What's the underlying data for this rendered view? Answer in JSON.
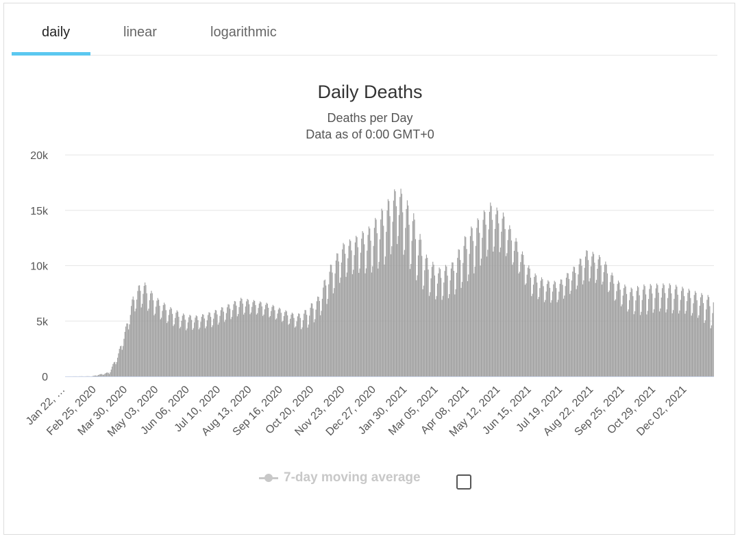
{
  "tabs": [
    {
      "label": "daily"
    },
    {
      "label": "linear"
    },
    {
      "label": "logarithmic"
    }
  ],
  "active_tab": 0,
  "legend": {
    "label": "7-day moving average",
    "enabled": false
  },
  "colors": {
    "bar": "#9e9e9e",
    "accent": "#5bc8f0",
    "grid": "#e6e6e6",
    "axis": "#ccd6eb"
  },
  "chart_data": {
    "type": "bar",
    "title": "Daily Deaths",
    "subtitle": [
      "Deaths per Day",
      "Data as of 0:00 GMT+0"
    ],
    "xlabel": "",
    "ylabel": "",
    "ylim": [
      0,
      20000
    ],
    "y_ticks": [
      "0",
      "5k",
      "10k",
      "15k",
      "20k"
    ],
    "y_tick_values": [
      0,
      5000,
      10000,
      15000,
      20000
    ],
    "x_start": "2020-01-22",
    "x_end": "2021-12-31",
    "x_tick_labels": [
      "Jan 22, …",
      "Feb 25, 2020",
      "Mar 30, 2020",
      "May 03, 2020",
      "Jun 06, 2020",
      "Jul 10, 2020",
      "Aug 13, 2020",
      "Sep 16, 2020",
      "Oct 20, 2020",
      "Nov 23, 2020",
      "Dec 27, 2020",
      "Jan 30, 2021",
      "Mar 05, 2021",
      "Apr 08, 2021",
      "May 12, 2021",
      "Jun 15, 2021",
      "Jul 19, 2021",
      "Aug 22, 2021",
      "Sep 25, 2021",
      "Oct 29, 2021",
      "Dec 02, 2021"
    ],
    "series": [
      {
        "name": "Daily Deaths",
        "weekly_low_points": [
          [
            "2020-01-22",
            0
          ],
          [
            "2020-02-20",
            0
          ],
          [
            "2020-03-10",
            200
          ],
          [
            "2020-03-20",
            1400
          ],
          [
            "2020-03-28",
            3200
          ],
          [
            "2020-04-05",
            5600
          ],
          [
            "2020-04-15",
            6000
          ],
          [
            "2020-04-30",
            5200
          ],
          [
            "2020-05-15",
            4500
          ],
          [
            "2020-06-01",
            4000
          ],
          [
            "2020-06-15",
            4100
          ],
          [
            "2020-07-01",
            4300
          ],
          [
            "2020-07-15",
            4800
          ],
          [
            "2020-08-01",
            5400
          ],
          [
            "2020-08-15",
            5500
          ],
          [
            "2020-09-01",
            5200
          ],
          [
            "2020-09-15",
            4800
          ],
          [
            "2020-10-01",
            4200
          ],
          [
            "2020-10-10",
            4000
          ],
          [
            "2020-10-25",
            5000
          ],
          [
            "2020-11-05",
            6500
          ],
          [
            "2020-11-20",
            8500
          ],
          [
            "2020-12-05",
            9000
          ],
          [
            "2020-12-20",
            8800
          ],
          [
            "2021-01-05",
            9500
          ],
          [
            "2021-01-20",
            11500
          ],
          [
            "2021-02-05",
            8500
          ],
          [
            "2021-02-20",
            7000
          ],
          [
            "2021-03-05",
            6500
          ],
          [
            "2021-03-20",
            6800
          ],
          [
            "2021-04-05",
            8000
          ],
          [
            "2021-04-20",
            9500
          ],
          [
            "2021-05-01",
            10800
          ],
          [
            "2021-05-15",
            10800
          ],
          [
            "2021-06-01",
            9000
          ],
          [
            "2021-06-15",
            7000
          ],
          [
            "2021-07-01",
            6400
          ],
          [
            "2021-07-15",
            6500
          ],
          [
            "2021-08-01",
            7500
          ],
          [
            "2021-08-15",
            8300
          ],
          [
            "2021-09-01",
            8000
          ],
          [
            "2021-09-15",
            6500
          ],
          [
            "2021-10-01",
            5400
          ],
          [
            "2021-10-15",
            5200
          ],
          [
            "2021-11-01",
            5600
          ],
          [
            "2021-11-15",
            5400
          ],
          [
            "2021-12-01",
            5400
          ],
          [
            "2021-12-15",
            5000
          ],
          [
            "2021-12-31",
            3800
          ]
        ],
        "weekly_peak_points": [
          [
            "2020-01-22",
            0
          ],
          [
            "2020-02-20",
            20
          ],
          [
            "2020-03-10",
            400
          ],
          [
            "2020-03-20",
            2200
          ],
          [
            "2020-03-28",
            4500
          ],
          [
            "2020-04-05",
            7300
          ],
          [
            "2020-04-15",
            8800
          ],
          [
            "2020-04-30",
            7200
          ],
          [
            "2020-05-15",
            6300
          ],
          [
            "2020-06-01",
            5600
          ],
          [
            "2020-06-15",
            5500
          ],
          [
            "2020-07-01",
            5900
          ],
          [
            "2020-07-15",
            6400
          ],
          [
            "2020-08-01",
            7100
          ],
          [
            "2020-08-15",
            6900
          ],
          [
            "2020-09-01",
            6600
          ],
          [
            "2020-09-15",
            6100
          ],
          [
            "2020-10-01",
            5600
          ],
          [
            "2020-10-10",
            6000
          ],
          [
            "2020-10-25",
            7300
          ],
          [
            "2020-11-05",
            9800
          ],
          [
            "2020-11-20",
            12000
          ],
          [
            "2020-12-05",
            12700
          ],
          [
            "2020-12-20",
            13600
          ],
          [
            "2021-01-05",
            15500
          ],
          [
            "2021-01-20",
            17400
          ],
          [
            "2021-02-05",
            15000
          ],
          [
            "2021-02-20",
            11000
          ],
          [
            "2021-03-05",
            9800
          ],
          [
            "2021-03-20",
            10300
          ],
          [
            "2021-04-05",
            13000
          ],
          [
            "2021-04-20",
            14600
          ],
          [
            "2021-05-01",
            15700
          ],
          [
            "2021-05-15",
            14800
          ],
          [
            "2021-06-01",
            12000
          ],
          [
            "2021-06-15",
            9500
          ],
          [
            "2021-07-01",
            8700
          ],
          [
            "2021-07-15",
            8600
          ],
          [
            "2021-08-01",
            10000
          ],
          [
            "2021-08-15",
            11500
          ],
          [
            "2021-09-01",
            10800
          ],
          [
            "2021-09-15",
            8800
          ],
          [
            "2021-10-01",
            8000
          ],
          [
            "2021-10-15",
            8300
          ],
          [
            "2021-11-01",
            8400
          ],
          [
            "2021-11-15",
            8400
          ],
          [
            "2021-12-01",
            8000
          ],
          [
            "2021-12-15",
            7600
          ],
          [
            "2021-12-31",
            7200
          ]
        ]
      }
    ],
    "grid": true,
    "legend_position": "bottom-center"
  }
}
